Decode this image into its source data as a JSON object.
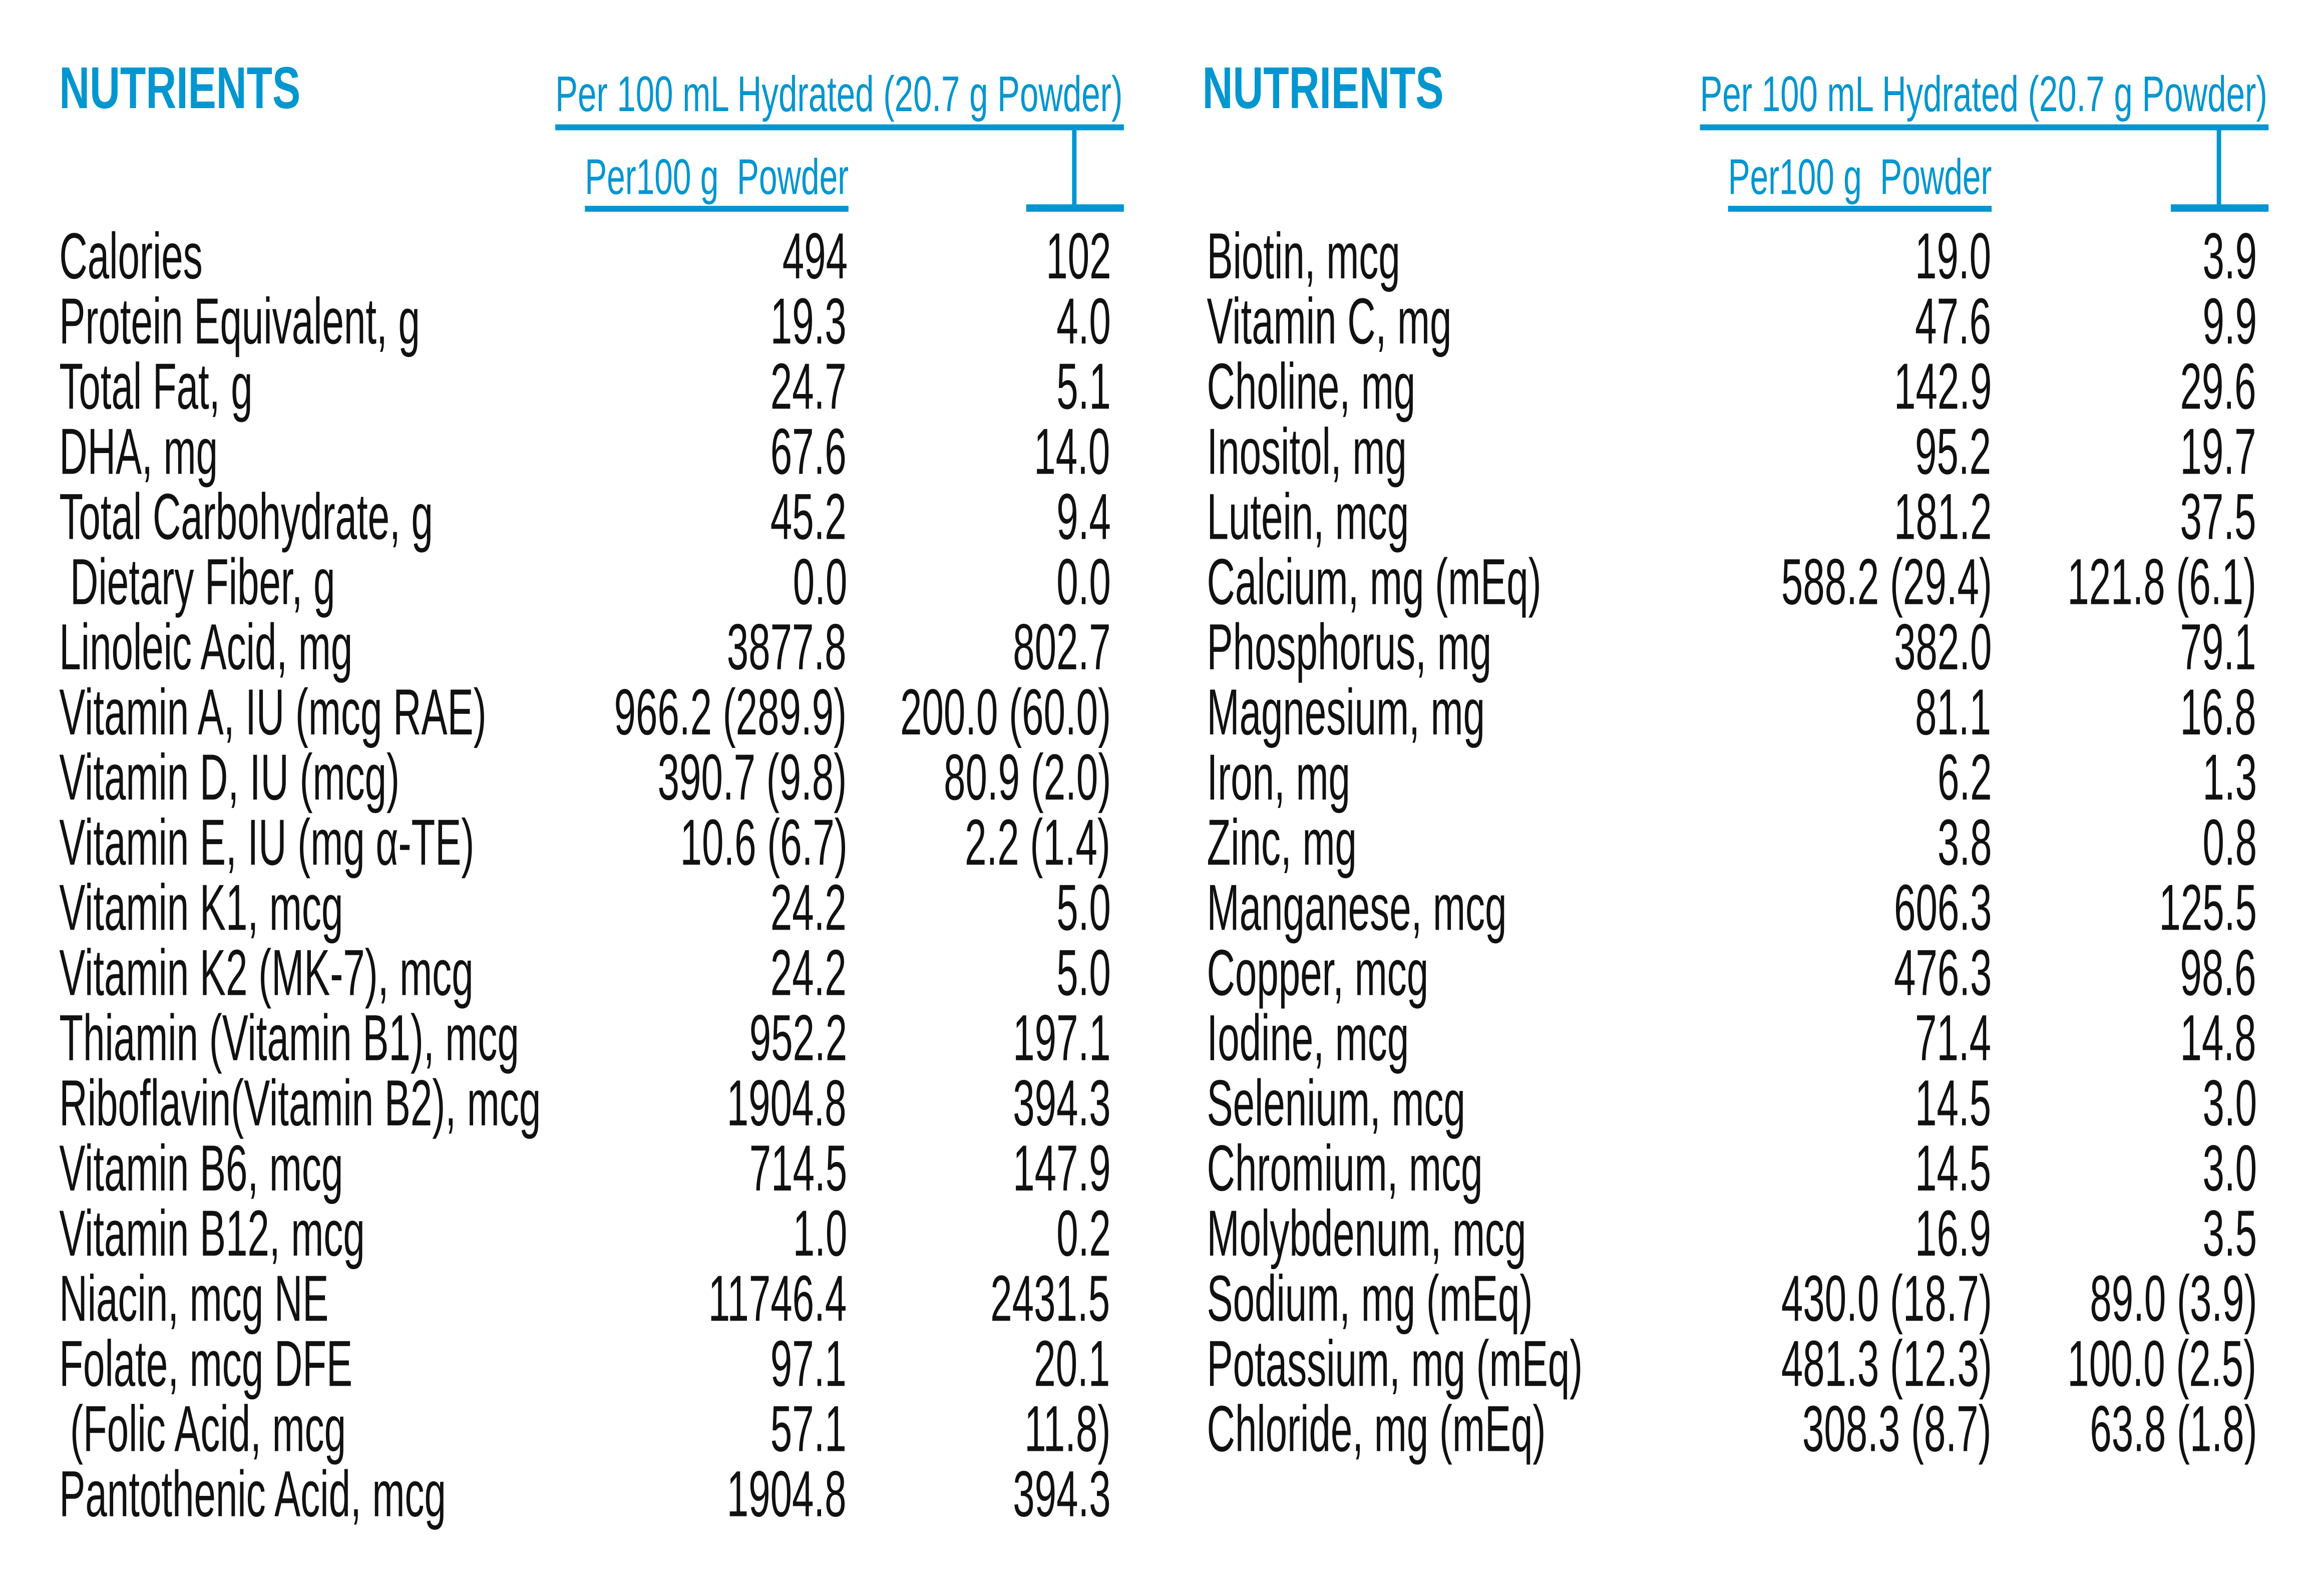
{
  "colors": {
    "accent": "#0096d0",
    "text": "#111111"
  },
  "left": {
    "title": "NUTRIENTS",
    "hydrated_header": "Per 100 mL Hydrated (20.7 g Powder)",
    "powder_header": "Per100 g  Powder",
    "rows": [
      {
        "name": "Calories",
        "powder": "494",
        "hydrated": "102"
      },
      {
        "name": "Protein Equivalent, g",
        "powder": "19.3",
        "hydrated": "4.0"
      },
      {
        "name": "Total Fat, g",
        "powder": "24.7",
        "hydrated": "5.1"
      },
      {
        "name": "DHA, mg",
        "powder": "67.6",
        "hydrated": "14.0"
      },
      {
        "name": "Total Carbohydrate, g",
        "powder": "45.2",
        "hydrated": "9.4"
      },
      {
        "name": " Dietary Fiber, g",
        "powder": "0.0",
        "hydrated": "0.0"
      },
      {
        "name": "Linoleic Acid, mg",
        "powder": "3877.8",
        "hydrated": "802.7"
      },
      {
        "name": "Vitamin A, IU (mcg RAE)",
        "powder": "966.2 (289.9)",
        "hydrated": "200.0 (60.0)"
      },
      {
        "name": "Vitamin D, IU (mcg)",
        "powder": "390.7 (9.8)",
        "hydrated": "80.9 (2.0)"
      },
      {
        "name": "Vitamin E, IU (mg α-TE)",
        "powder": "10.6 (6.7)",
        "hydrated": "2.2 (1.4)"
      },
      {
        "name": "Vitamin K1, mcg",
        "powder": "24.2",
        "hydrated": "5.0"
      },
      {
        "name": "Vitamin K2 (MK-7), mcg",
        "powder": "24.2",
        "hydrated": "5.0"
      },
      {
        "name": "Thiamin (Vitamin B1), mcg",
        "powder": "952.2",
        "hydrated": "197.1"
      },
      {
        "name": "Riboflavin(Vitamin B2), mcg",
        "powder": "1904.8",
        "hydrated": "394.3"
      },
      {
        "name": "Vitamin B6, mcg",
        "powder": "714.5",
        "hydrated": "147.9"
      },
      {
        "name": "Vitamin B12, mcg",
        "powder": "1.0",
        "hydrated": "0.2"
      },
      {
        "name": "Niacin, mcg NE",
        "powder": "11746.4",
        "hydrated": "2431.5"
      },
      {
        "name": "Folate, mcg DFE",
        "powder": "97.1",
        "hydrated": "20.1"
      },
      {
        "name": " (Folic Acid, mcg",
        "powder": "57.1",
        "hydrated": "11.8)"
      },
      {
        "name": "Pantothenic Acid, mcg",
        "powder": "1904.8",
        "hydrated": "394.3"
      }
    ]
  },
  "right": {
    "title": "NUTRIENTS",
    "hydrated_header": "Per 100 mL Hydrated (20.7 g Powder)",
    "powder_header": "Per100 g  Powder",
    "rows": [
      {
        "name": "Biotin, mcg",
        "powder": "19.0",
        "hydrated": "3.9"
      },
      {
        "name": "Vitamin C, mg",
        "powder": "47.6",
        "hydrated": "9.9"
      },
      {
        "name": "Choline, mg",
        "powder": "142.9",
        "hydrated": "29.6"
      },
      {
        "name": "Inositol, mg",
        "powder": "95.2",
        "hydrated": "19.7"
      },
      {
        "name": "Lutein, mcg",
        "powder": "181.2",
        "hydrated": "37.5"
      },
      {
        "name": "Calcium, mg (mEq)",
        "powder": "588.2 (29.4)",
        "hydrated": "121.8 (6.1)"
      },
      {
        "name": "Phosphorus, mg",
        "powder": "382.0",
        "hydrated": "79.1"
      },
      {
        "name": "Magnesium, mg",
        "powder": "81.1",
        "hydrated": "16.8"
      },
      {
        "name": "Iron, mg",
        "powder": "6.2",
        "hydrated": "1.3"
      },
      {
        "name": "Zinc, mg",
        "powder": "3.8",
        "hydrated": "0.8"
      },
      {
        "name": "Manganese, mcg",
        "powder": "606.3",
        "hydrated": "125.5"
      },
      {
        "name": "Copper, mcg",
        "powder": "476.3",
        "hydrated": "98.6"
      },
      {
        "name": "Iodine, mcg",
        "powder": "71.4",
        "hydrated": "14.8"
      },
      {
        "name": "Selenium, mcg",
        "powder": "14.5",
        "hydrated": "3.0"
      },
      {
        "name": "Chromium, mcg",
        "powder": "14.5",
        "hydrated": "3.0"
      },
      {
        "name": "Molybdenum, mcg",
        "powder": "16.9",
        "hydrated": "3.5"
      },
      {
        "name": "Sodium, mg (mEq)",
        "powder": "430.0 (18.7)",
        "hydrated": "89.0 (3.9)"
      },
      {
        "name": "Potassium, mg (mEq)",
        "powder": "481.3 (12.3)",
        "hydrated": "100.0 (2.5)"
      },
      {
        "name": "Chloride, mg (mEq)",
        "powder": "308.3 (8.7)",
        "hydrated": "63.8 (1.8)"
      }
    ]
  }
}
